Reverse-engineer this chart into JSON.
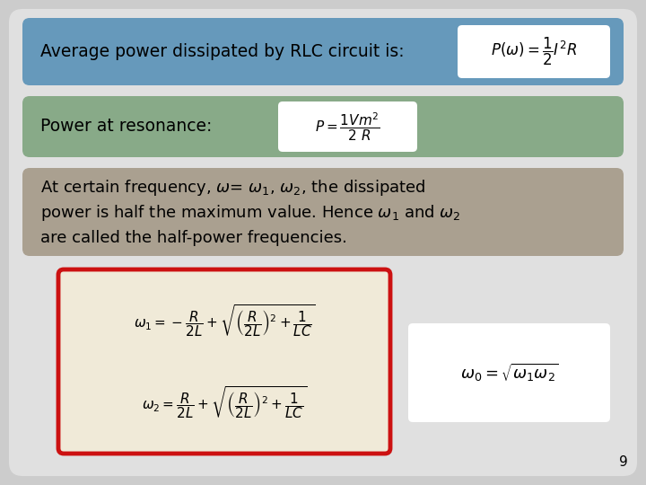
{
  "bg_color": "#cccccc",
  "slide_bg": "#e0e0e0",
  "box1_color": "#6699bb",
  "box2_color": "#88aa88",
  "box3_color": "#aaa090",
  "box1_text": "Average power dissipated by RLC circuit is:",
  "box1_formula": "$P(\\omega) = \\dfrac{1}{2}I^2R$",
  "box2_text": "Power at resonance:",
  "box2_formula": "$P = \\dfrac{1Vm^2}{2\\ R}$",
  "box3_line1": "At certain frequency, $\\omega$= $\\omega_1$, $\\omega_2$, the dissipated",
  "box3_line2": "power is half the maximum value. Hence $\\omega_1$ and $\\omega_2$",
  "box3_line3": "are called the half-power frequencies.",
  "formula1": "$\\omega_1 = -\\dfrac{R}{2L} + \\sqrt{\\left(\\dfrac{R}{2L}\\right)^2 + \\dfrac{1}{LC}}$",
  "formula2": "$\\omega_2 = \\dfrac{R}{2L} + \\sqrt{\\left(\\dfrac{R}{2L}\\right)^2 + \\dfrac{1}{LC}}$",
  "formula3": "$\\omega_0 = \\sqrt{\\omega_1 \\omega_2}$",
  "formula_box_bg": "#f0ead8",
  "formula_box_border": "#cc1111",
  "white_box_bg": "#ffffff",
  "page_number": "9"
}
